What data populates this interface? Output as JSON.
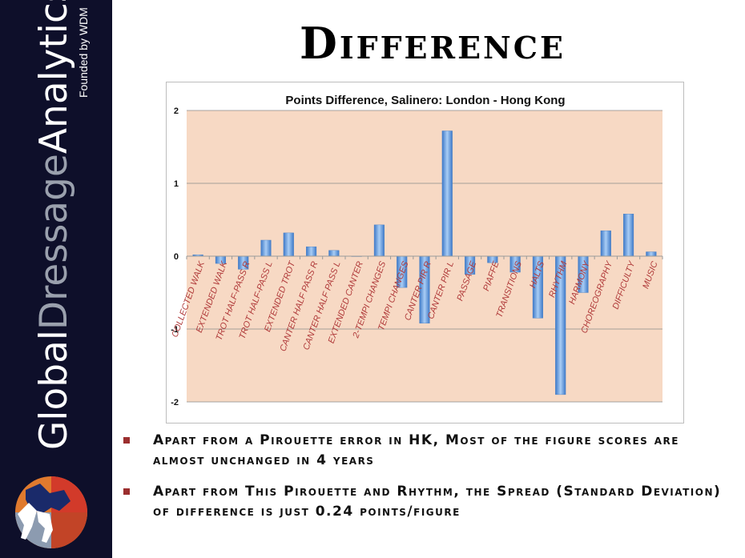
{
  "brand": {
    "global": "Global",
    "dressage": "Dressage",
    "analytics": "Analytics",
    "tagline": "Founded by WDM"
  },
  "slide": {
    "title": "Difference"
  },
  "bullets": [
    "Apart from a Pirouette error in HK, Most of the figure scores are almost unchanged in 4 years",
    "Apart from This Pirouette and Rhythm, the Spread (Standard Deviation) of difference is just 0.24 points/figure"
  ],
  "colors": {
    "sidebar": "#0e0f2a",
    "plot_background": "#f7d9c4",
    "bar": "#5e95d6",
    "tick_label": "#b03a3a",
    "bullet": "#9b2e2e"
  },
  "chart_data": {
    "type": "bar",
    "title": "Points Difference, Salinero: London - Hong Kong",
    "xlabel": "",
    "ylabel": "",
    "ylim": [
      -2,
      2
    ],
    "yticks": [
      2,
      1,
      0,
      -1,
      -2
    ],
    "grid": true,
    "categories": [
      "COLLECTED WALK",
      "EXTENDED WALK",
      "TROT HALF-PASS R",
      "TROT HALF-PASS L",
      "EXTENDED TROT",
      "CANTER HALF PASS R",
      "CANTER HALF PASS L",
      "EXTENDED CANTER",
      "2-TEMPI CHANGES",
      "TEMPI CHANGES",
      "CANTER PIR R",
      "CANTER PIR L",
      "PASSAGE",
      "PIAFFE",
      "TRANSITIONS",
      "HALTS",
      "RHYTHM",
      "HARMONY",
      "CHOREOGRAPHY",
      "DIFFICULTY",
      "MUSIC"
    ],
    "values": [
      0.02,
      -0.1,
      -0.18,
      0.22,
      0.32,
      0.13,
      0.08,
      0.0,
      0.43,
      -0.43,
      -0.92,
      1.72,
      -0.25,
      -0.09,
      -0.22,
      -0.85,
      -1.9,
      -0.5,
      0.35,
      0.58,
      0.06
    ]
  }
}
